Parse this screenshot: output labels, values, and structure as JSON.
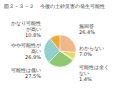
{
  "chart_data": {
    "type": "pie",
    "title": "今後の土砂災害の発生可能性",
    "subtitle": "図３－３－２",
    "categories": [
      "かなり可能性\nが高い",
      "やや可能性が\n高い",
      "可能性は低い",
      "可能性は全く\nない",
      "わからない",
      "無回答"
    ],
    "values": [
      10.8,
      26.9,
      27.5,
      1.4,
      7.0,
      26.4
    ],
    "value_labels": [
      "10.8%",
      "26.9%",
      "27.5%",
      "1.4%",
      "7.0%",
      "26.4%"
    ],
    "colors": [
      "#f0a830",
      "#90d0d0",
      "#90c870",
      "#d8d848",
      "#e8d860",
      "#f0b888"
    ]
  }
}
